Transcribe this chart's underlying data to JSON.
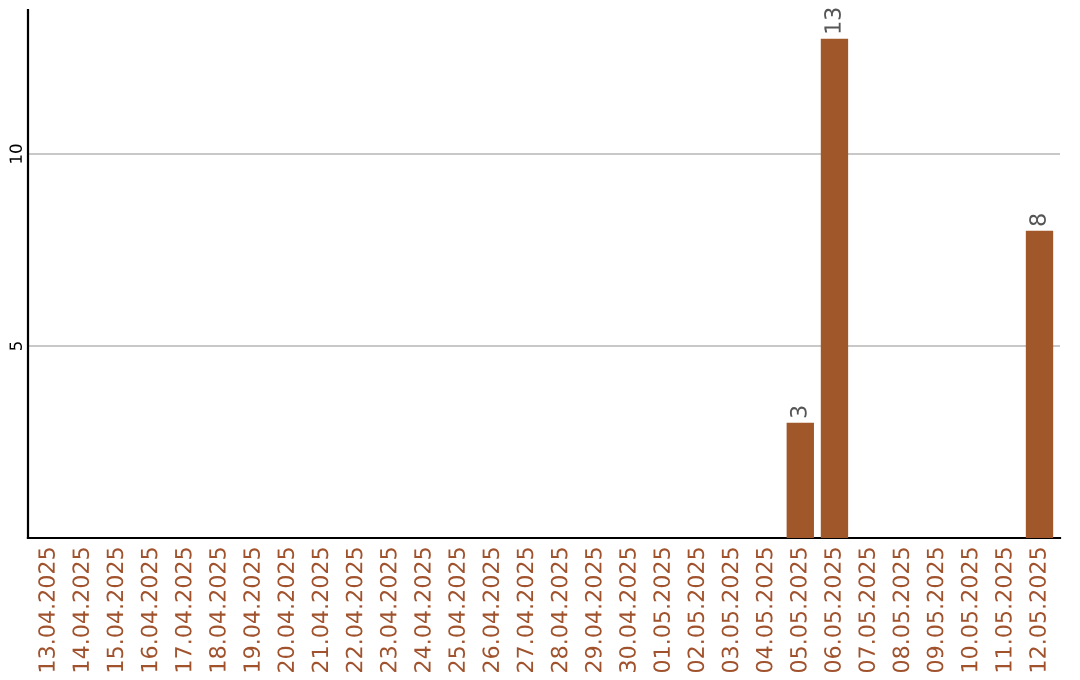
{
  "chart_data": {
    "type": "bar",
    "categories": [
      "13.04.2025",
      "14.04.2025",
      "15.04.2025",
      "16.04.2025",
      "17.04.2025",
      "18.04.2025",
      "19.04.2025",
      "20.04.2025",
      "21.04.2025",
      "22.04.2025",
      "23.04.2025",
      "24.04.2025",
      "25.04.2025",
      "26.04.2025",
      "27.04.2025",
      "28.04.2025",
      "29.04.2025",
      "30.04.2025",
      "01.05.2025",
      "02.05.2025",
      "03.05.2025",
      "04.05.2025",
      "05.05.2025",
      "06.05.2025",
      "07.05.2025",
      "08.05.2025",
      "09.05.2025",
      "10.05.2025",
      "11.05.2025",
      "12.05.2025"
    ],
    "values": [
      0,
      0,
      0,
      0,
      0,
      0,
      0,
      0,
      0,
      0,
      0,
      0,
      0,
      0,
      0,
      0,
      0,
      0,
      0,
      0,
      0,
      0,
      3,
      13,
      0,
      0,
      0,
      0,
      0,
      8
    ],
    "value_labels": [
      null,
      null,
      null,
      null,
      null,
      null,
      null,
      null,
      null,
      null,
      null,
      null,
      null,
      null,
      null,
      null,
      null,
      null,
      null,
      null,
      null,
      null,
      "3",
      "13",
      null,
      null,
      null,
      null,
      null,
      "8"
    ],
    "color": "#a0572a",
    "ylim": [
      0,
      13.75
    ],
    "yticks": [
      5,
      10
    ],
    "grid": "y",
    "legend": false
  }
}
